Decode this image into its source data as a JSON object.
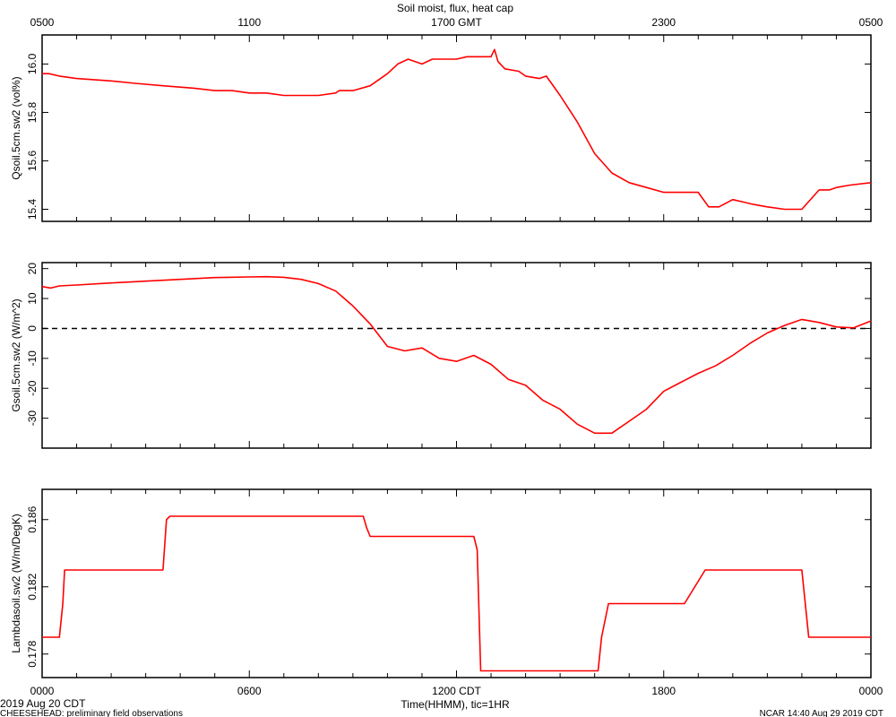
{
  "figure": {
    "title": "Soil moist, flux, heat cap",
    "top_axis_unit": "GMT",
    "bottom_axis_unit": "CDT",
    "xlabel": "Time(HHMM), tic=1HR",
    "date_label": "2019 Aug 20 CDT",
    "project_label": "CHEESEHEAD: preliminary field observations",
    "credit_label": "NCAR 14:40 Aug 29 2019 CDT"
  },
  "chart_data": [
    {
      "type": "line",
      "ylabel": "Qsoil.5cm.sw2 (vol%)",
      "x_unit": "hours since 0000 CDT",
      "xlim": [
        0,
        24
      ],
      "ylim": [
        15.35,
        16.12
      ],
      "y_ticks": [
        15.4,
        15.6,
        15.8,
        16.0
      ],
      "y_tick_labels": [
        "15.4",
        "15.6",
        "15.8",
        "16.0"
      ],
      "color": "#ff0000",
      "series": [
        {
          "x": [
            0,
            0.2,
            0.5,
            1,
            2,
            2.7,
            3.5,
            4.4,
            5,
            5.5,
            6,
            6.5,
            7,
            7.5,
            8,
            8.5,
            8.6,
            9,
            9.5,
            10,
            10.3,
            10.6,
            11,
            11.3,
            11.6,
            12,
            12.3,
            12.7,
            13,
            13.1,
            13.2,
            13.4,
            13.8,
            14,
            14.4,
            14.6,
            15,
            15.5,
            16,
            16.5,
            17,
            17.5,
            18,
            18.5,
            19,
            19.3,
            19.6,
            20,
            20.3,
            20.6,
            21,
            21.5,
            22,
            22.5,
            22.6,
            22.8,
            23,
            23.4,
            24
          ],
          "y": [
            15.96,
            15.96,
            15.95,
            15.94,
            15.93,
            15.92,
            15.91,
            15.9,
            15.89,
            15.89,
            15.88,
            15.88,
            15.87,
            15.87,
            15.87,
            15.88,
            15.89,
            15.89,
            15.91,
            15.96,
            16.0,
            16.02,
            16.0,
            16.02,
            16.02,
            16.02,
            16.03,
            16.03,
            16.03,
            16.06,
            16.01,
            15.98,
            15.97,
            15.95,
            15.94,
            15.95,
            15.87,
            15.76,
            15.63,
            15.55,
            15.51,
            15.49,
            15.47,
            15.47,
            15.47,
            15.41,
            15.41,
            15.44,
            15.43,
            15.42,
            15.41,
            15.4,
            15.4,
            15.48,
            15.48,
            15.48,
            15.49,
            15.5,
            15.51
          ]
        }
      ]
    },
    {
      "type": "line",
      "ylabel": "Gsoil.5cm.sw2 (W/m^2)",
      "x_unit": "hours since 0000 CDT",
      "xlim": [
        0,
        24
      ],
      "ylim": [
        -40,
        22
      ],
      "y_ticks": [
        -30,
        -20,
        -10,
        0,
        10,
        20
      ],
      "y_tick_labels": [
        "-30",
        "-20",
        "-10",
        "0",
        "10",
        "20"
      ],
      "zero_line": "dashed",
      "color": "#ff0000",
      "series": [
        {
          "x": [
            0,
            0.25,
            0.5,
            1,
            2,
            3,
            4,
            5,
            6,
            6.5,
            7,
            7.5,
            8,
            8.5,
            9,
            9.5,
            10,
            10.5,
            11,
            11.5,
            12,
            12.5,
            13,
            13.5,
            14,
            14.5,
            15,
            15.5,
            16,
            16.5,
            17,
            17.5,
            18,
            18.5,
            19,
            19.5,
            20,
            20.5,
            21,
            21.5,
            22,
            22.5,
            23,
            23.5,
            24
          ],
          "y": [
            14,
            13.5,
            14.2,
            14.5,
            15.2,
            15.8,
            16.4,
            17,
            17.2,
            17.3,
            17.1,
            16.4,
            15,
            12.5,
            7.5,
            1.5,
            -6,
            -7.5,
            -6.5,
            -10,
            -11,
            -9,
            -12,
            -17,
            -19,
            -24,
            -27,
            -32,
            -35,
            -35,
            -31,
            -27,
            -21,
            -18,
            -15,
            -12.5,
            -9,
            -5,
            -1.5,
            1,
            3,
            2,
            0.5,
            0.2,
            2.5
          ]
        }
      ]
    },
    {
      "type": "line",
      "ylabel": "Lambdasoil.sw2 (W/m/DegK)",
      "x_unit": "hours since 0000 CDT",
      "xlim": [
        0,
        24
      ],
      "ylim": [
        0.1766,
        0.1878
      ],
      "y_ticks": [
        0.178,
        0.182,
        0.186
      ],
      "y_tick_labels": [
        "0.178",
        "0.182",
        "0.186"
      ],
      "color": "#ff0000",
      "series": [
        {
          "x": [
            0,
            0.5,
            0.6,
            0.65,
            3.5,
            3.6,
            3.7,
            9.3,
            9.4,
            9.5,
            12.5,
            12.6,
            12.7,
            14.8,
            14.9,
            15.0,
            16.1,
            16.2,
            16.4,
            16.6,
            16.7,
            17.4,
            17.5,
            17.6,
            18.6,
            19.2,
            19.4,
            22.0,
            22.2,
            22.6,
            24
          ],
          "y": [
            0.179,
            0.179,
            0.181,
            0.183,
            0.183,
            0.186,
            0.1862,
            0.1862,
            0.1855,
            0.185,
            0.185,
            0.1842,
            0.177,
            0.177,
            0.177,
            0.177,
            0.177,
            0.179,
            0.181,
            0.181,
            0.181,
            0.181,
            0.181,
            0.181,
            0.181,
            0.183,
            0.183,
            0.183,
            0.179,
            0.179,
            0.179
          ]
        }
      ]
    }
  ],
  "x_axis_bottom": {
    "ticks": [
      0,
      6,
      12,
      18,
      24
    ],
    "labels": [
      "0000",
      "0600",
      "1200 CDT",
      "1800",
      "0000"
    ]
  },
  "x_axis_top": {
    "ticks": [
      0,
      6,
      12,
      18,
      24
    ],
    "labels": [
      "0500",
      "1100",
      "1700 GMT",
      "2300",
      "0500"
    ]
  }
}
